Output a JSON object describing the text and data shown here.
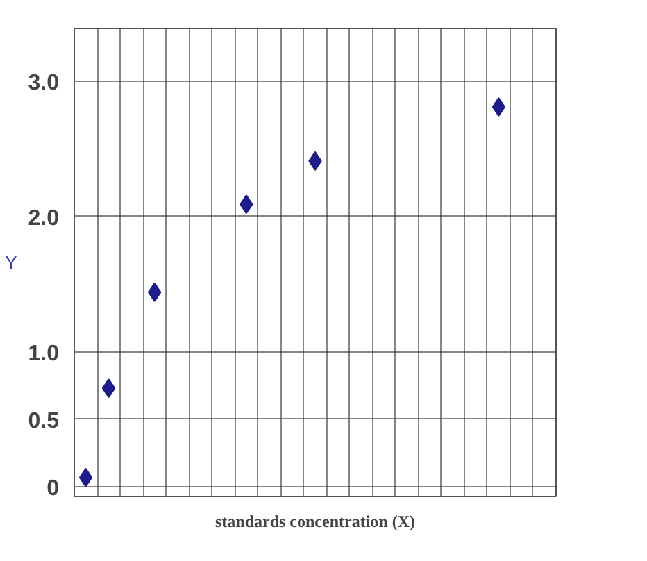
{
  "chart_data": {
    "type": "scatter",
    "xlabel": "standards concentration (X)",
    "ylabel": "Y",
    "categories": [
      null,
      null,
      null,
      null,
      null,
      null,
      null,
      null,
      null,
      null,
      null,
      null,
      null,
      null,
      null,
      null,
      null,
      null,
      null,
      null,
      null
    ],
    "series": [
      {
        "color": "#1c1c8c",
        "values": [
          0.07,
          0.73,
          null,
          1.44,
          null,
          null,
          null,
          2.09,
          null,
          null,
          2.41,
          null,
          null,
          null,
          null,
          null,
          null,
          null,
          2.81,
          null,
          null
        ]
      }
    ],
    "marker": "diamond",
    "grid": true,
    "tick_labels": "y",
    "ylim": [
      -0.07,
      3.39
    ],
    "yticks": [
      0,
      {
        "value": 0.5,
        "label": "0.5"
      },
      {
        "value": 1,
        "label": "1.0"
      },
      {
        "value": 2,
        "label": "2.0"
      },
      {
        "value": 3,
        "label": "3.0"
      }
    ]
  }
}
